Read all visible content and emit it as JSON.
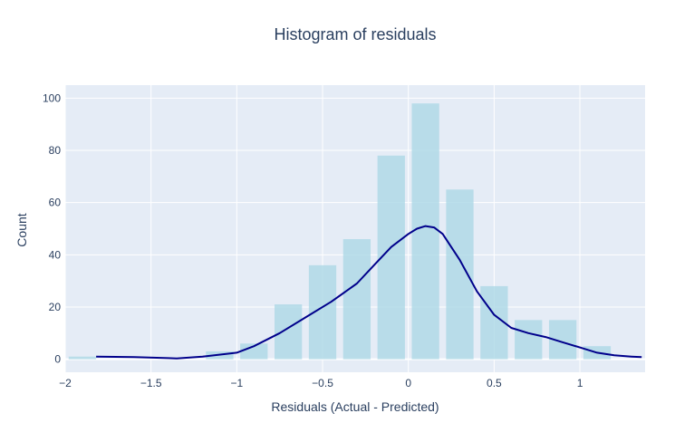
{
  "chart_data": {
    "type": "bar",
    "title": "Histogram of residuals",
    "xlabel": "Residuals (Actual - Predicted)",
    "ylabel": "Count",
    "xlim": [
      -2,
      1.38
    ],
    "ylim": [
      -5,
      105
    ],
    "x_ticks": [
      -2,
      -1.5,
      -1,
      -0.5,
      0,
      0.5,
      1
    ],
    "x_tick_labels": [
      "−2",
      "−1.5",
      "−1",
      "−0.5",
      "0",
      "0.5",
      "1"
    ],
    "y_ticks": [
      0,
      20,
      40,
      60,
      80,
      100
    ],
    "y_tick_labels": [
      "0",
      "20",
      "40",
      "60",
      "80",
      "100"
    ],
    "bin_width": 0.2,
    "bins": [
      {
        "x": -1.9,
        "count": 1
      },
      {
        "x": -1.7,
        "count": 0
      },
      {
        "x": -1.5,
        "count": 0
      },
      {
        "x": -1.3,
        "count": 0
      },
      {
        "x": -1.1,
        "count": 3
      },
      {
        "x": -0.9,
        "count": 6
      },
      {
        "x": -0.7,
        "count": 21
      },
      {
        "x": -0.5,
        "count": 36
      },
      {
        "x": -0.3,
        "count": 46
      },
      {
        "x": -0.1,
        "count": 78
      },
      {
        "x": 0.1,
        "count": 98
      },
      {
        "x": 0.3,
        "count": 65
      },
      {
        "x": 0.5,
        "count": 28
      },
      {
        "x": 0.7,
        "count": 15
      },
      {
        "x": 0.9,
        "count": 15
      },
      {
        "x": 1.1,
        "count": 5
      }
    ],
    "kde": {
      "x": [
        -1.82,
        -1.6,
        -1.4,
        -1.35,
        -1.2,
        -1.0,
        -0.9,
        -0.75,
        -0.6,
        -0.45,
        -0.3,
        -0.2,
        -0.1,
        0.0,
        0.05,
        0.1,
        0.15,
        0.2,
        0.3,
        0.4,
        0.5,
        0.6,
        0.7,
        0.8,
        0.9,
        1.0,
        1.1,
        1.2,
        1.3,
        1.36
      ],
      "y": [
        1,
        0.8,
        0.4,
        0.3,
        1.0,
        2.5,
        5,
        10,
        16,
        22,
        29,
        36,
        43,
        48,
        50,
        51,
        50.5,
        48,
        38,
        26,
        17,
        12,
        10,
        8.5,
        6.5,
        4.5,
        2.5,
        1.5,
        1.0,
        0.8
      ]
    },
    "colors": {
      "bar": "#add8e6",
      "kde": "#00008b",
      "plot_bg": "#e5ecf6",
      "grid": "#ffffff",
      "text": "#2a3f5f"
    },
    "grid": true,
    "legend": "none"
  }
}
